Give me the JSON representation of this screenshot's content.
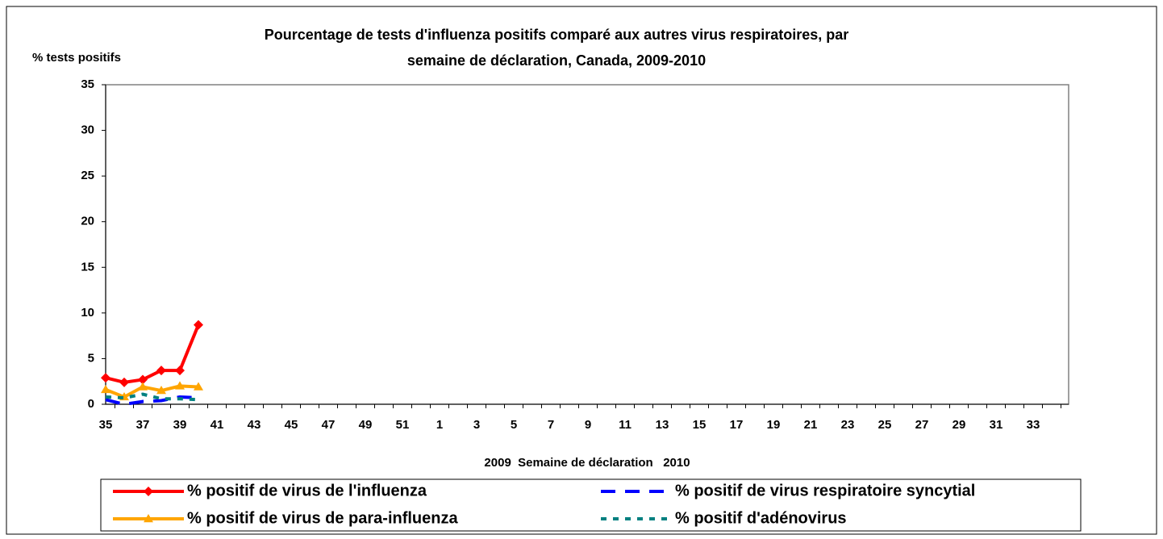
{
  "chart_data": {
    "type": "line",
    "title": [
      "Pourcentage de tests d'influenza positifs comparé aux autres virus respiratoires, par",
      "semaine de déclaration, Canada, 2009-2010"
    ],
    "y_label": "% tests positifs",
    "x_label": "2009  Semaine de déclaration   2010",
    "categories": [
      "35",
      null,
      "37",
      null,
      "39",
      null,
      "41",
      null,
      "43",
      null,
      "45",
      null,
      "47",
      null,
      "49",
      null,
      "51",
      null,
      "1",
      null,
      "3",
      null,
      "5",
      null,
      "7",
      null,
      "9",
      null,
      "11",
      null,
      "13",
      null,
      "15",
      null,
      "17",
      null,
      "19",
      null,
      "21",
      null,
      "23",
      null,
      "25",
      null,
      "27",
      null,
      "29",
      null,
      "31",
      null,
      "33",
      null
    ],
    "ylim": [
      0,
      35
    ],
    "yticks": [
      0,
      5,
      10,
      15,
      20,
      25,
      30,
      35
    ],
    "legend": "bottom",
    "series": [
      {
        "name": "% positif de virus de l'influenza",
        "color": "#ff0000",
        "dash": "solid",
        "marker": "diamond",
        "values": [
          2.9,
          2.4,
          2.7,
          3.7,
          3.7,
          8.7,
          null,
          null,
          null,
          null,
          null,
          null,
          null,
          null,
          null,
          null,
          null,
          null,
          null,
          null,
          null,
          null,
          null,
          null,
          null,
          null,
          null,
          null,
          null,
          null,
          null,
          null,
          null,
          null,
          null,
          null,
          null,
          null,
          null,
          null,
          null,
          null,
          null,
          null,
          null,
          null,
          null,
          null,
          null,
          null,
          null,
          null
        ]
      },
      {
        "name": "% positif de virus respiratoire syncytial",
        "color": "#0000ff",
        "dash": "long",
        "marker": "none",
        "values": [
          0.5,
          0.0,
          0.3,
          0.4,
          0.8,
          0.7,
          null,
          null,
          null,
          null,
          null,
          null,
          null,
          null,
          null,
          null,
          null,
          null,
          null,
          null,
          null,
          null,
          null,
          null,
          null,
          null,
          null,
          null,
          null,
          null,
          null,
          null,
          null,
          null,
          null,
          null,
          null,
          null,
          null,
          null,
          null,
          null,
          null,
          null,
          null,
          null,
          null,
          null,
          null,
          null,
          null,
          null
        ]
      },
      {
        "name": "% positif de virus de para-influenza",
        "color": "#ffa500",
        "dash": "solid",
        "marker": "triangle",
        "values": [
          1.6,
          0.8,
          1.9,
          1.5,
          2.0,
          1.9,
          null,
          null,
          null,
          null,
          null,
          null,
          null,
          null,
          null,
          null,
          null,
          null,
          null,
          null,
          null,
          null,
          null,
          null,
          null,
          null,
          null,
          null,
          null,
          null,
          null,
          null,
          null,
          null,
          null,
          null,
          null,
          null,
          null,
          null,
          null,
          null,
          null,
          null,
          null,
          null,
          null,
          null,
          null,
          null,
          null,
          null
        ]
      },
      {
        "name": "% positif d'adénovirus",
        "color": "#008080",
        "dash": "short",
        "marker": "none",
        "values": [
          0.8,
          0.7,
          1.1,
          0.6,
          0.6,
          0.5,
          null,
          null,
          null,
          null,
          null,
          null,
          null,
          null,
          null,
          null,
          null,
          null,
          null,
          null,
          null,
          null,
          null,
          null,
          null,
          null,
          null,
          null,
          null,
          null,
          null,
          null,
          null,
          null,
          null,
          null,
          null,
          null,
          null,
          null,
          null,
          null,
          null,
          null,
          null,
          null,
          null,
          null,
          null,
          null,
          null,
          null
        ]
      }
    ]
  }
}
